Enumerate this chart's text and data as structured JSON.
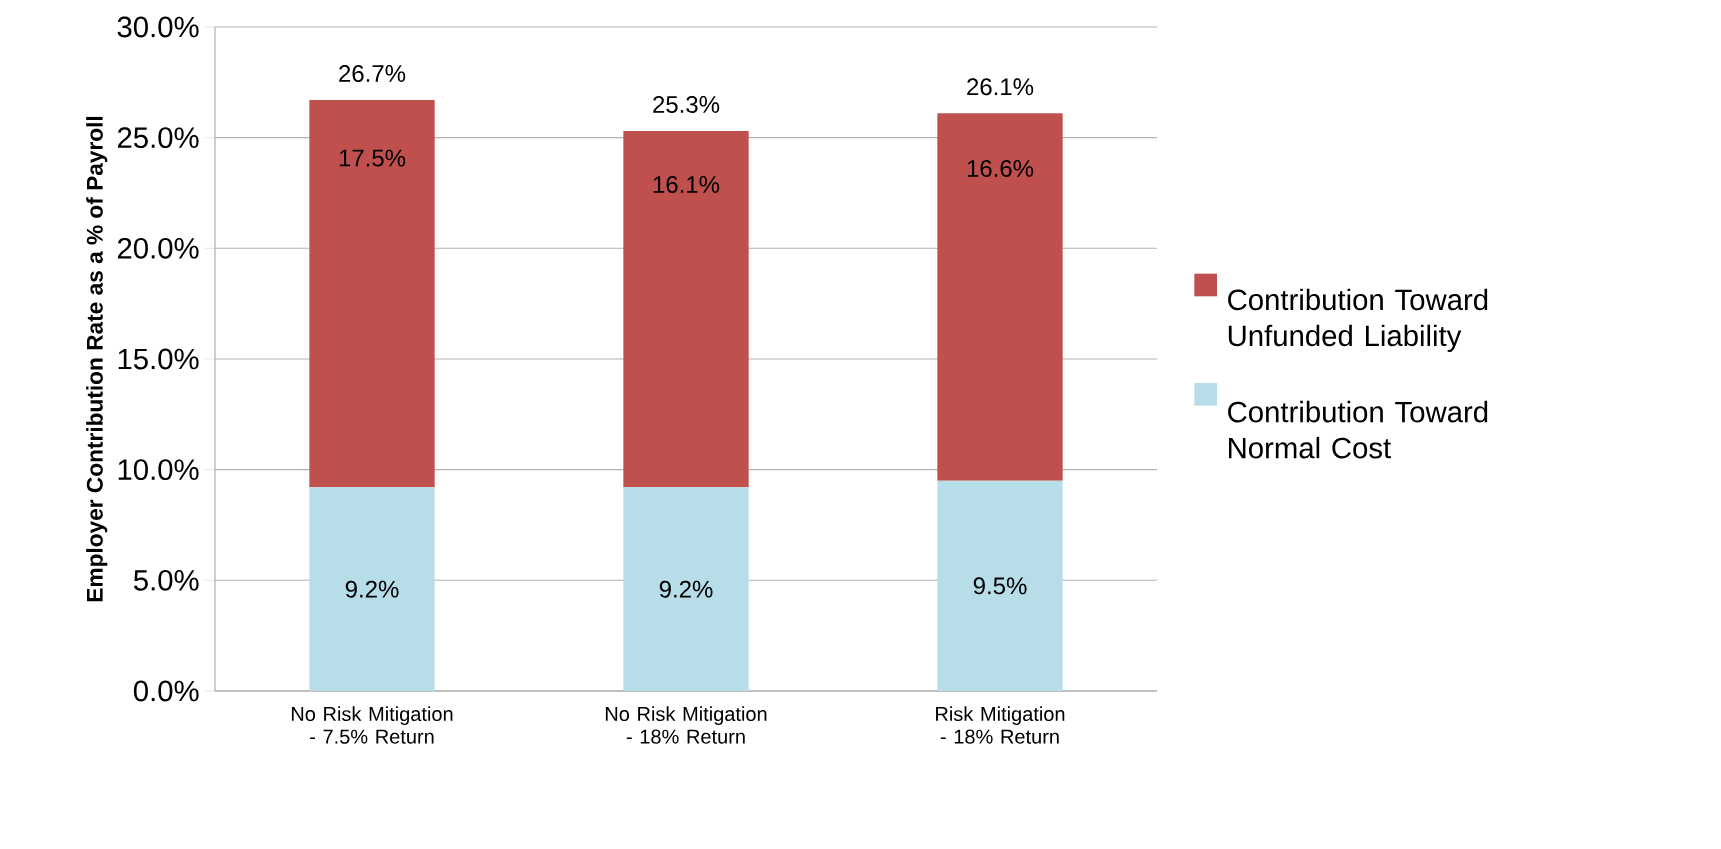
{
  "chart_data": {
    "type": "bar",
    "stacked": true,
    "ylabel": "Employer Contribution Rate as a % of Payroll",
    "categories": [
      "No Risk Mitigation - 7.5% Return",
      "No Risk Mitigation - 18% Return",
      "Risk Mitigation - 18% Return"
    ],
    "series": [
      {
        "name": "Contribution Toward Normal Cost",
        "color": "#b7dde8",
        "values": [
          9.2,
          9.2,
          9.5
        ],
        "value_labels": [
          "9.2%",
          "9.2%",
          "9.5%"
        ]
      },
      {
        "name": "Contribution Toward Unfunded Liability",
        "color": "#c0504d",
        "values": [
          17.5,
          16.1,
          16.6
        ],
        "value_labels": [
          "17.5%",
          "16.1%",
          "16.6%"
        ]
      }
    ],
    "totals": [
      "26.7%",
      "25.3%",
      "26.1%"
    ],
    "ylim": [
      0,
      30
    ],
    "yticks": [
      {
        "value": 0,
        "label": "0.0%"
      },
      {
        "value": 5,
        "label": "5.0%"
      },
      {
        "value": 10,
        "label": "10.0%"
      },
      {
        "value": 15,
        "label": "15.0%"
      },
      {
        "value": 20,
        "label": "20.0%"
      },
      {
        "value": 25,
        "label": "25.0%"
      },
      {
        "value": 30,
        "label": "30.0%"
      }
    ],
    "grid": "y",
    "legend": "right"
  }
}
